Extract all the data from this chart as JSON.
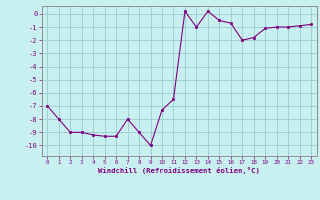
{
  "x": [
    0,
    1,
    2,
    3,
    4,
    5,
    6,
    7,
    8,
    9,
    10,
    11,
    12,
    13,
    14,
    15,
    16,
    17,
    18,
    19,
    20,
    21,
    22,
    23
  ],
  "y": [
    -7.0,
    -8.0,
    -9.0,
    -9.0,
    -9.2,
    -9.3,
    -9.3,
    -8.0,
    -9.0,
    -10.0,
    -7.3,
    -6.5,
    0.2,
    -1.0,
    0.2,
    -0.5,
    -0.7,
    -2.0,
    -1.8,
    -1.1,
    -1.0,
    -1.0,
    -0.9,
    -0.8
  ],
  "line_color": "#800080",
  "marker": "s",
  "markersize": 2.0,
  "linewidth": 0.8,
  "bg_color": "#c8f0f0",
  "grid_color": "#a0d0d0",
  "xlabel": "Windchill (Refroidissement éolien,°C)",
  "xlim": [
    -0.5,
    23.5
  ],
  "ylim": [
    -10.8,
    0.6
  ],
  "yticks": [
    0,
    -1,
    -2,
    -3,
    -4,
    -5,
    -6,
    -7,
    -8,
    -9,
    -10
  ],
  "xticks": [
    0,
    1,
    2,
    3,
    4,
    5,
    6,
    7,
    8,
    9,
    10,
    11,
    12,
    13,
    14,
    15,
    16,
    17,
    18,
    19,
    20,
    21,
    22,
    23
  ],
  "tick_color": "#800080",
  "label_color": "#800080",
  "axis_color": "#909090"
}
